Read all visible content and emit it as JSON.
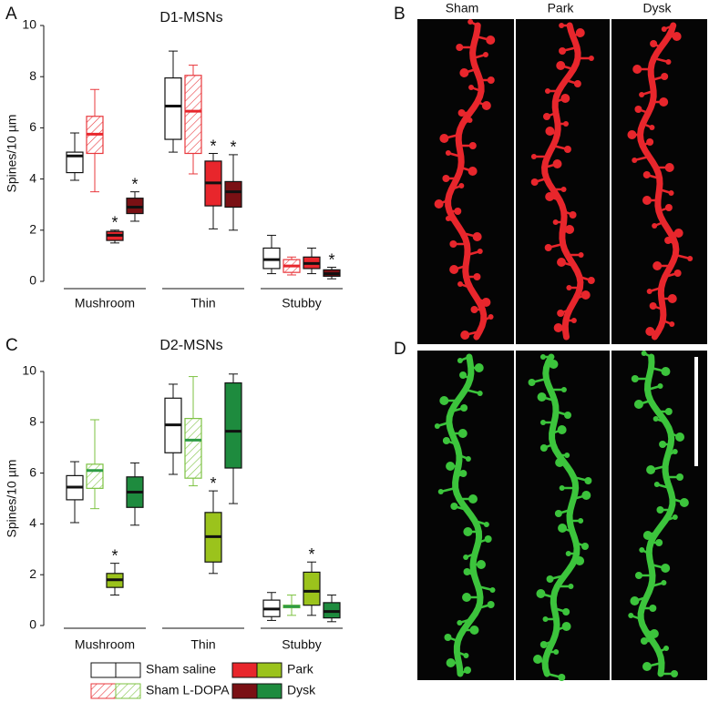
{
  "panel_labels": [
    "A",
    "B",
    "C",
    "D"
  ],
  "image_columns": [
    "Sham",
    "Park",
    "Dysk"
  ],
  "chart_data": [
    {
      "type": "box",
      "title": "D1-MSNs",
      "y_label": "Spines/10 µm",
      "categories": [
        "Mushroom",
        "Thin",
        "Stubby"
      ],
      "ylim": [
        0,
        10
      ],
      "yticks": [
        0,
        2,
        4,
        6,
        8,
        10
      ],
      "series": [
        {
          "name": "Sham saline",
          "color": "#ffffff",
          "edgecolor": "#111111",
          "median_color": "#111111",
          "hatched": false,
          "values": [
            [
              3.95,
              4.25,
              4.9,
              5.05,
              5.8
            ],
            [
              5.05,
              5.55,
              6.85,
              7.95,
              9.0
            ],
            [
              0.3,
              0.5,
              0.85,
              1.3,
              1.8
            ]
          ],
          "significance": [
            null,
            null,
            null
          ]
        },
        {
          "name": "Sham L-DOPA",
          "color": "#e8383d",
          "edgecolor": "#e8383d",
          "median_color": "#e8262c",
          "hatched": true,
          "values": [
            [
              3.5,
              5.0,
              5.75,
              6.45,
              7.5
            ],
            [
              4.2,
              5.0,
              6.65,
              8.05,
              8.45
            ],
            [
              0.25,
              0.35,
              0.6,
              0.85,
              0.95
            ]
          ],
          "significance": [
            null,
            null,
            null
          ]
        },
        {
          "name": "Park",
          "color": "#e8262c",
          "edgecolor": "#111111",
          "median_color": "#111111",
          "hatched": false,
          "values": [
            [
              1.5,
              1.6,
              1.8,
              1.95,
              2.0
            ],
            [
              2.05,
              2.95,
              3.85,
              4.7,
              5.0
            ],
            [
              0.3,
              0.5,
              0.7,
              0.95,
              1.3
            ]
          ],
          "significance": [
            "*",
            "*",
            null
          ]
        },
        {
          "name": "Dysk",
          "color": "#7a1014",
          "edgecolor": "#111111",
          "median_color": "#111111",
          "hatched": false,
          "values": [
            [
              2.35,
              2.65,
              2.9,
              3.25,
              3.5
            ],
            [
              2.0,
              2.9,
              3.5,
              3.9,
              4.95
            ],
            [
              0.1,
              0.2,
              0.3,
              0.45,
              0.55
            ]
          ],
          "significance": [
            "*",
            "*",
            "*"
          ]
        }
      ]
    },
    {
      "type": "box",
      "title": "D2-MSNs",
      "y_label": "Spines/10 µm",
      "categories": [
        "Mushroom",
        "Thin",
        "Stubby"
      ],
      "ylim": [
        0,
        10
      ],
      "yticks": [
        0,
        2,
        4,
        6,
        8,
        10
      ],
      "series": [
        {
          "color": "#ffffff",
          "edgecolor": "#111111",
          "median_color": "#111111",
          "hatched": false,
          "values": [
            [
              4.05,
              4.95,
              5.45,
              5.9,
              6.45
            ],
            [
              5.95,
              6.8,
              7.9,
              8.95,
              9.5
            ],
            [
              0.2,
              0.35,
              0.65,
              1.0,
              1.3
            ]
          ],
          "significance": [
            null,
            null,
            null
          ]
        },
        {
          "color": "#7dc242",
          "edgecolor": "#7dc242",
          "median_color": "#2e9b45",
          "hatched": true,
          "values": [
            [
              4.6,
              5.4,
              6.1,
              6.35,
              8.1
            ],
            [
              5.5,
              5.8,
              7.3,
              8.15,
              9.8
            ],
            [
              0.4,
              0.7,
              0.75,
              0.8,
              1.2
            ]
          ],
          "significance": [
            null,
            null,
            null
          ]
        },
        {
          "color": "#9bc31c",
          "edgecolor": "#111111",
          "median_color": "#111111",
          "hatched": false,
          "values": [
            [
              1.2,
              1.5,
              1.8,
              2.05,
              2.45
            ],
            [
              2.05,
              2.5,
              3.5,
              4.45,
              5.3
            ],
            [
              0.4,
              0.8,
              1.35,
              2.1,
              2.5
            ]
          ],
          "significance": [
            "*",
            "*",
            "*"
          ]
        },
        {
          "color": "#1e8b3e",
          "edgecolor": "#111111",
          "median_color": "#111111",
          "hatched": false,
          "values": [
            [
              3.95,
              4.65,
              5.25,
              5.85,
              6.4
            ],
            [
              4.8,
              6.2,
              7.65,
              9.55,
              9.9
            ],
            [
              0.15,
              0.3,
              0.55,
              0.9,
              1.2
            ]
          ],
          "significance": [
            null,
            null,
            null
          ]
        }
      ]
    }
  ]
}
